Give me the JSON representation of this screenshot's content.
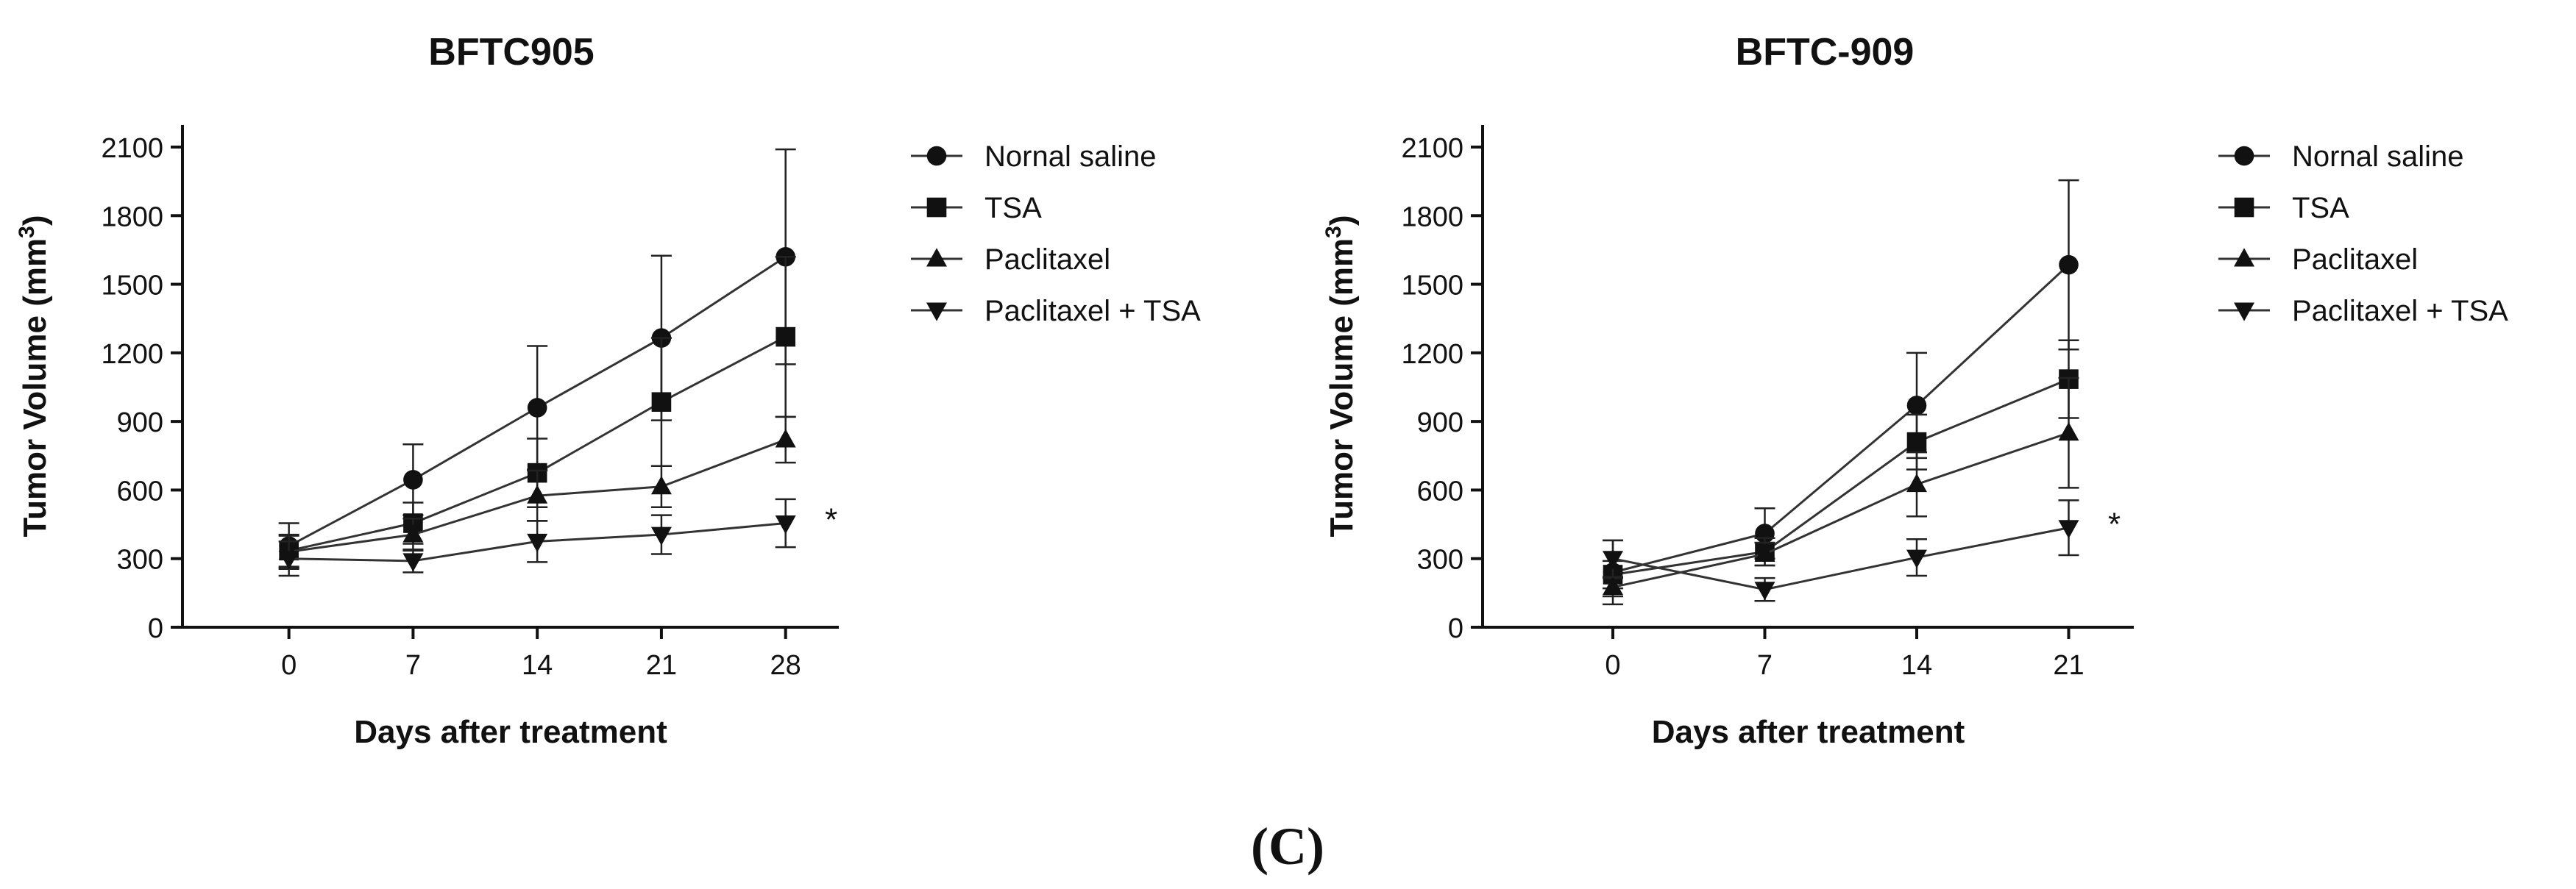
{
  "figure": {
    "panel_label": "(C)"
  },
  "chart_data": [
    {
      "type": "line",
      "title": "BFTC905",
      "xlabel": "Days after treatment",
      "ylabel": "Tumor Volume (mm",
      "ylabel_sup": "3",
      "ylabel_close": ")",
      "x": [
        0,
        7,
        14,
        21,
        28
      ],
      "x_ticks": [
        "0",
        "7",
        "14",
        "21",
        "28"
      ],
      "xlim": [
        -6,
        31
      ],
      "ylim": [
        0,
        2100
      ],
      "y_ticks": [
        0,
        300,
        600,
        900,
        1200,
        1500,
        1800,
        2100
      ],
      "y_tick_labels": [
        "0",
        "300",
        "600",
        "900",
        "1200",
        "1500",
        "1800",
        "2100"
      ],
      "significance": "*",
      "significance_series": 3,
      "series": [
        {
          "name": "Nornal saline",
          "marker": "circle",
          "values": [
            355,
            645,
            960,
            1265,
            1620
          ],
          "errors": [
            100,
            155,
            270,
            360,
            470
          ]
        },
        {
          "name": "TSA",
          "marker": "square",
          "values": [
            335,
            455,
            675,
            985,
            1270
          ],
          "errors": [
            70,
            90,
            150,
            280,
            350
          ]
        },
        {
          "name": "Paclitaxel",
          "marker": "triangle-up",
          "values": [
            330,
            405,
            575,
            615,
            820
          ],
          "errors": [
            70,
            70,
            110,
            90,
            100
          ]
        },
        {
          "name": "Paclitaxel + TSA",
          "marker": "triangle-down",
          "values": [
            300,
            290,
            375,
            405,
            455
          ],
          "errors": [
            75,
            50,
            90,
            85,
            105
          ]
        }
      ]
    },
    {
      "type": "line",
      "title": "BFTC-909",
      "xlabel": "Days after treatment",
      "ylabel": "Tumor Volume (mm",
      "ylabel_sup": "3",
      "ylabel_close": ")",
      "x": [
        0,
        7,
        14,
        21
      ],
      "x_ticks": [
        "0",
        "7",
        "14",
        "21"
      ],
      "xlim": [
        -6,
        24
      ],
      "ylim": [
        0,
        2100
      ],
      "y_ticks": [
        0,
        300,
        600,
        900,
        1200,
        1500,
        1800,
        2100
      ],
      "y_tick_labels": [
        "0",
        "300",
        "600",
        "900",
        "1200",
        "1500",
        "1800",
        "2100"
      ],
      "significance": "*",
      "significance_series": 3,
      "series": [
        {
          "name": "Nornal saline",
          "marker": "circle",
          "values": [
            240,
            410,
            970,
            1585
          ],
          "errors": [
            140,
            110,
            230,
            370
          ]
        },
        {
          "name": "TSA",
          "marker": "square",
          "values": [
            230,
            330,
            810,
            1085
          ],
          "errors": [
            60,
            60,
            120,
            170
          ]
        },
        {
          "name": "Paclitaxel",
          "marker": "triangle-up",
          "values": [
            175,
            320,
            625,
            850
          ],
          "errors": [
            40,
            50,
            140,
            240
          ]
        },
        {
          "name": "Paclitaxel + TSA",
          "marker": "triangle-down",
          "values": [
            300,
            165,
            305,
            435
          ],
          "errors": [
            80,
            50,
            80,
            120
          ]
        }
      ]
    }
  ]
}
